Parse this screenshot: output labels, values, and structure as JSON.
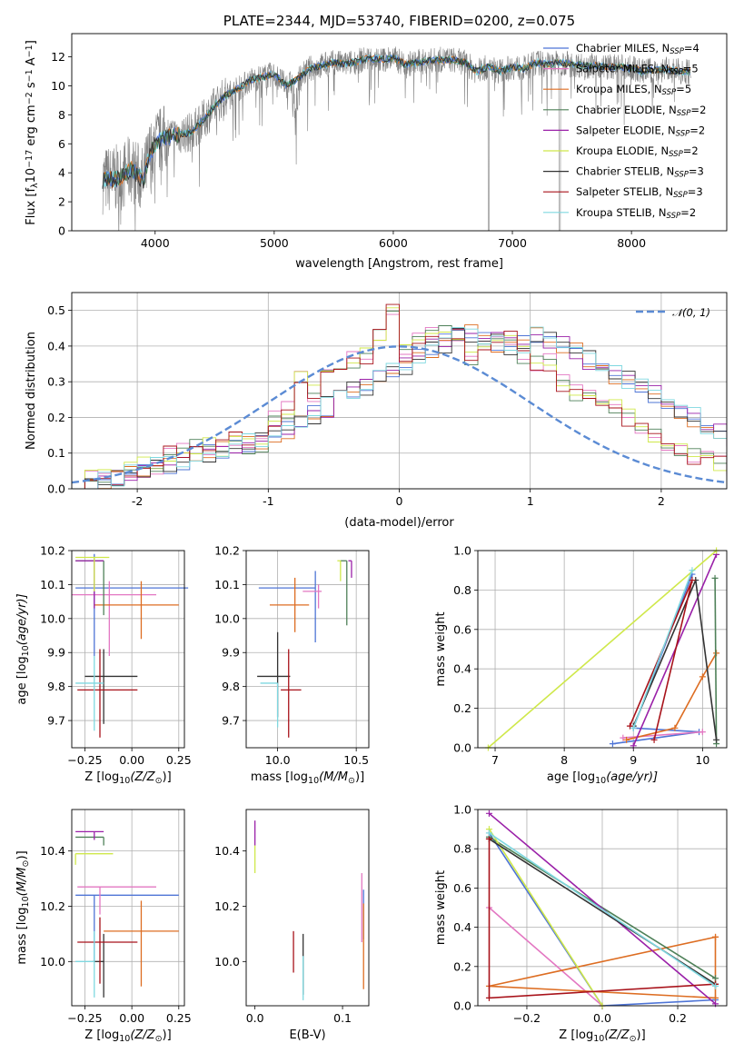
{
  "chart_data": [
    {
      "type": "line",
      "title": "PLATE=2344, MJD=53740, FIBERID=0200, z=0.075",
      "xlabel": "wavelength [Angstrom, rest frame]",
      "ylabel": "Flux [f",
      "ylabel_parts": [
        "Flux [f",
        "λ",
        "10",
        "−17",
        " erg cm",
        "−2",
        " s",
        "−1",
        " A",
        "−1",
        "]"
      ],
      "xlim": [
        3300,
        8800
      ],
      "ylim": [
        0,
        13.6
      ],
      "xticks": [
        4000,
        5000,
        6000,
        7000,
        8000
      ],
      "yticks": [
        0,
        2,
        4,
        6,
        8,
        10,
        12
      ],
      "grid": false,
      "legend_position": "upper right",
      "continuum_x": [
        3560,
        3700,
        3800,
        3900,
        3950,
        4000,
        4100,
        4200,
        4300,
        4400,
        4500,
        4600,
        4700,
        4800,
        4900,
        5000,
        5100,
        5200,
        5300,
        5400,
        5500,
        5600,
        5700,
        5800,
        5900,
        6000,
        6100,
        6200,
        6300,
        6400,
        6500,
        6600,
        6700,
        6800,
        6900,
        7000,
        7100,
        7200,
        7300,
        7400,
        7500,
        7600,
        7700,
        7800,
        7900,
        8000,
        8100,
        8200,
        8300,
        8400,
        8500
      ],
      "continuum_y": [
        3.5,
        3.6,
        4.3,
        3.4,
        5.2,
        6.0,
        6.5,
        6.6,
        6.8,
        7.6,
        8.6,
        9.4,
        9.8,
        10.4,
        10.6,
        10.8,
        10.0,
        10.5,
        11.2,
        11.4,
        11.6,
        11.5,
        11.7,
        11.9,
        11.8,
        11.9,
        11.5,
        11.6,
        11.7,
        11.8,
        11.8,
        11.6,
        11.0,
        11.3,
        11.0,
        11.3,
        11.2,
        11.6,
        11.5,
        11.6,
        11.5,
        11.4,
        11.4,
        11.3,
        11.3,
        11.2,
        11.0,
        11.1,
        11.1,
        11.0,
        11.0
      ],
      "series": [
        {
          "name": "Chabrier MILES, N",
          "nssp": "4",
          "color": "#4e74d6"
        },
        {
          "name": "Salpeter MILES, N",
          "nssp": "5",
          "color": "#e377c2"
        },
        {
          "name": "Kroupa MILES, N",
          "nssp": "5",
          "color": "#dd6d22"
        },
        {
          "name": "Chabrier ELODIE, N",
          "nssp": "2",
          "color": "#4e8058"
        },
        {
          "name": "Salpeter ELODIE, N",
          "nssp": "2",
          "color": "#9a20a8"
        },
        {
          "name": "Kroupa ELODIE, N",
          "nssp": "2",
          "color": "#cfe84a"
        },
        {
          "name": "Chabrier STELIB, N",
          "nssp": "3",
          "color": "#333333"
        },
        {
          "name": "Salpeter STELIB, N",
          "nssp": "3",
          "color": "#a8121a"
        },
        {
          "name": "Kroupa STELIB, N",
          "nssp": "2",
          "color": "#7fd8e0"
        }
      ],
      "legend_sub": "SSP",
      "legend_eq": "="
    },
    {
      "type": "histogram",
      "xlabel": "(data-model)/error",
      "ylabel": "Normed distribution",
      "xlim": [
        -2.5,
        2.5
      ],
      "ylim": [
        0,
        0.55
      ],
      "xticks": [
        -2,
        -1,
        0,
        1,
        2
      ],
      "yticks": [
        0.0,
        0.1,
        0.2,
        0.3,
        0.4,
        0.5
      ],
      "grid": true,
      "legend_position": "upper right",
      "legend_label": "𝒩(0, 1)",
      "gaussian_color": "#5b8bd4",
      "bin_width": 0.1,
      "bin_start": -2.5,
      "base": [
        0.02,
        0.02,
        0.03,
        0.03,
        0.04,
        0.05,
        0.06,
        0.07,
        0.08,
        0.09,
        0.1,
        0.11,
        0.12,
        0.13,
        0.14,
        0.15,
        0.17,
        0.19,
        0.21,
        0.23,
        0.25,
        0.27,
        0.29,
        0.31,
        0.33,
        0.35,
        0.37,
        0.39,
        0.41,
        0.43,
        0.44,
        0.43,
        0.41,
        0.4,
        0.41,
        0.43,
        0.42,
        0.4,
        0.38,
        0.36,
        0.34,
        0.32,
        0.3,
        0.28,
        0.26,
        0.24,
        0.22,
        0.2,
        0.18,
        0.16,
        0.14,
        0.12,
        0.1,
        0.09,
        0.08,
        0.07,
        0.06,
        0.05,
        0.04,
        0.03
      ],
      "base2": [
        0.02,
        0.03,
        0.03,
        0.04,
        0.05,
        0.06,
        0.07,
        0.09,
        0.1,
        0.11,
        0.12,
        0.12,
        0.13,
        0.12,
        0.12,
        0.2,
        0.22,
        0.3,
        0.27,
        0.33,
        0.34,
        0.36,
        0.37,
        0.44,
        0.5,
        0.38,
        0.42,
        0.44,
        0.43,
        0.4,
        0.37,
        0.41,
        0.42,
        0.43,
        0.38,
        0.36,
        0.35,
        0.3,
        0.27,
        0.26,
        0.24,
        0.22,
        0.2,
        0.16,
        0.15,
        0.12,
        0.1,
        0.09,
        0.08,
        0.07,
        0.06,
        0.05,
        0.04,
        0.03,
        0.03,
        0.02,
        0.02,
        0.02,
        0.02,
        0.02
      ]
    },
    {
      "type": "errorbar",
      "xlabel": "Z [log",
      "xlabel_parts": [
        "Z [log",
        "10",
        "(Z/Z",
        "⊙",
        ")]"
      ],
      "ylabel": "age  [log",
      "ylabel_parts": [
        "age  [log",
        "10",
        "(age/yr)]"
      ],
      "xlim": [
        -0.32,
        0.28
      ],
      "ylim": [
        9.62,
        10.2
      ],
      "xticks": [
        -0.25,
        0.0,
        0.25
      ],
      "xticklabels": [
        "−0.25",
        "0.00",
        "0.25"
      ],
      "yticks": [
        9.7,
        9.8,
        9.9,
        10.0,
        10.1,
        10.2
      ],
      "grid": true,
      "points": [
        {
          "x": -0.2,
          "xerr": [
            0.1,
            0.5
          ],
          "y": 10.09,
          "yerr": [
            0.2,
            0.1
          ],
          "c": 0
        },
        {
          "x": -0.12,
          "xerr": [
            0.2,
            0.25
          ],
          "y": 10.07,
          "yerr": [
            0.18,
            0.04
          ],
          "c": 1
        },
        {
          "x": 0.05,
          "xerr": [
            0.25,
            0.2
          ],
          "y": 10.04,
          "yerr": [
            0.1,
            0.07
          ],
          "c": 2
        },
        {
          "x": -0.15,
          "xerr": [
            0.15,
            0.0
          ],
          "y": 10.17,
          "yerr": [
            0.16,
            0.0
          ],
          "c": 3
        },
        {
          "x": -0.2,
          "xerr": [
            0.1,
            0.05
          ],
          "y": 10.17,
          "yerr": [
            0.14,
            0.0
          ],
          "c": 4
        },
        {
          "x": -0.2,
          "xerr": [
            0.1,
            0.08
          ],
          "y": 10.18,
          "yerr": [
            0.1,
            0.0
          ],
          "c": 5
        },
        {
          "x": -0.15,
          "xerr": [
            0.1,
            0.18
          ],
          "y": 9.83,
          "yerr": [
            0.14,
            0.08
          ],
          "c": 6
        },
        {
          "x": -0.17,
          "xerr": [
            0.12,
            0.2
          ],
          "y": 9.79,
          "yerr": [
            0.14,
            0.12
          ],
          "c": 7
        },
        {
          "x": -0.2,
          "xerr": [
            0.1,
            0.05
          ],
          "y": 9.81,
          "yerr": [
            0.14,
            0.08
          ],
          "c": 8
        }
      ]
    },
    {
      "type": "errorbar",
      "xlabel": "mass [log",
      "xlabel_parts": [
        "mass [log",
        "10",
        "(M/M",
        "⊙",
        ")]"
      ],
      "xlim": [
        9.8,
        10.58
      ],
      "ylim": [
        9.62,
        10.2
      ],
      "xticks": [
        10.0,
        10.5
      ],
      "xticklabels": [
        "10.0",
        "10.5"
      ],
      "yticks": [
        9.7,
        9.8,
        9.9,
        10.0,
        10.1,
        10.2
      ],
      "grid": true,
      "points": [
        {
          "x": 10.24,
          "xerr": [
            0.36,
            0.0
          ],
          "y": 10.09,
          "yerr": [
            0.16,
            0.05
          ],
          "c": 0
        },
        {
          "x": 10.26,
          "xerr": [
            0.1,
            0.02
          ],
          "y": 10.08,
          "yerr": [
            0.05,
            0.02
          ],
          "c": 1
        },
        {
          "x": 10.11,
          "xerr": [
            0.16,
            0.09
          ],
          "y": 10.04,
          "yerr": [
            0.08,
            0.08
          ],
          "c": 2
        },
        {
          "x": 10.44,
          "xerr": [
            0.04,
            0.0
          ],
          "y": 10.17,
          "yerr": [
            0.19,
            0.0
          ],
          "c": 3
        },
        {
          "x": 10.47,
          "xerr": [
            0.02,
            0.0
          ],
          "y": 10.17,
          "yerr": [
            0.05,
            0.0
          ],
          "c": 4
        },
        {
          "x": 10.4,
          "xerr": [
            0.02,
            0.0
          ],
          "y": 10.17,
          "yerr": [
            0.06,
            0.0
          ],
          "c": 5
        },
        {
          "x": 10.0,
          "xerr": [
            0.13,
            0.08
          ],
          "y": 9.83,
          "yerr": [
            0.12,
            0.13
          ],
          "c": 6
        },
        {
          "x": 10.07,
          "xerr": [
            0.05,
            0.08
          ],
          "y": 9.79,
          "yerr": [
            0.14,
            0.12
          ],
          "c": 7
        },
        {
          "x": 10.0,
          "xerr": [
            0.11,
            0.0
          ],
          "y": 9.81,
          "yerr": [
            0.13,
            0.0
          ],
          "c": 8
        }
      ]
    },
    {
      "type": "line",
      "xlabel": "age  [log",
      "xlabel_parts": [
        "age  [log",
        "10",
        "(age/yr)]"
      ],
      "ylabel": "mass weight",
      "xlim": [
        6.75,
        10.35
      ],
      "ylim": [
        0,
        1
      ],
      "xticks": [
        7,
        8,
        9,
        10
      ],
      "yticks": [
        0.0,
        0.2,
        0.4,
        0.6,
        0.8,
        1.0
      ],
      "grid": true,
      "series": [
        {
          "c": 0,
          "x": [
            8.7,
            9.95,
            9.0,
            9.85
          ],
          "y": [
            0.02,
            0.08,
            0.1,
            0.88
          ]
        },
        {
          "c": 1,
          "x": [
            8.85,
            10.0
          ],
          "y": [
            0.05,
            0.08
          ]
        },
        {
          "c": 2,
          "x": [
            8.9,
            9.6,
            10.0,
            10.2
          ],
          "y": [
            0.04,
            0.1,
            0.36,
            0.48
          ]
        },
        {
          "c": 3,
          "x": [
            10.2,
            10.18
          ],
          "y": [
            0.02,
            0.86
          ]
        },
        {
          "c": 4,
          "x": [
            9.0,
            10.2
          ],
          "y": [
            0.01,
            0.98
          ]
        },
        {
          "c": 5,
          "x": [
            6.9,
            10.2
          ],
          "y": [
            0.0,
            1.0
          ]
        },
        {
          "c": 6,
          "x": [
            9.0,
            9.9,
            10.2
          ],
          "y": [
            0.11,
            0.85,
            0.04
          ]
        },
        {
          "c": 7,
          "x": [
            9.3,
            9.85,
            8.95
          ],
          "y": [
            0.04,
            0.85,
            0.11
          ]
        },
        {
          "c": 8,
          "x": [
            9.0,
            9.85
          ],
          "y": [
            0.1,
            0.9
          ]
        }
      ]
    },
    {
      "type": "errorbar",
      "xlabel": "Z [log",
      "xlabel_parts": [
        "Z [log",
        "10",
        "(Z/Z",
        "⊙",
        ")]"
      ],
      "ylabel": "mass [log",
      "ylabel_parts": [
        "mass [log",
        "10",
        "(M/M",
        "⊙",
        ")]"
      ],
      "xlim": [
        -0.32,
        0.28
      ],
      "ylim": [
        9.84,
        10.55
      ],
      "xticks": [
        -0.25,
        0.0,
        0.25
      ],
      "xticklabels": [
        "−0.25",
        "0.00",
        "0.25"
      ],
      "yticks": [
        10.0,
        10.2,
        10.4
      ],
      "grid": true,
      "points": [
        {
          "x": -0.2,
          "xerr": [
            0.1,
            0.45
          ],
          "y": 10.24,
          "yerr": [
            0.24,
            0.0
          ],
          "c": 0
        },
        {
          "x": -0.17,
          "xerr": [
            0.12,
            0.3
          ],
          "y": 10.27,
          "yerr": [
            0.1,
            0.0
          ],
          "c": 1
        },
        {
          "x": 0.05,
          "xerr": [
            0.2,
            0.2
          ],
          "y": 10.11,
          "yerr": [
            0.2,
            0.11
          ],
          "c": 2
        },
        {
          "x": -0.15,
          "xerr": [
            0.15,
            0.0
          ],
          "y": 10.45,
          "yerr": [
            0.03,
            0.0
          ],
          "c": 3
        },
        {
          "x": -0.2,
          "xerr": [
            0.1,
            0.05
          ],
          "y": 10.47,
          "yerr": [
            0.03,
            0.0
          ],
          "c": 4
        },
        {
          "x": -0.3,
          "xerr": [
            0.0,
            0.2
          ],
          "y": 10.39,
          "yerr": [
            0.04,
            0.0
          ],
          "c": 5
        },
        {
          "x": -0.15,
          "xerr": [
            0.06,
            0.0
          ],
          "y": 10.0,
          "yerr": [
            0.13,
            0.1
          ],
          "c": 6
        },
        {
          "x": -0.17,
          "xerr": [
            0.12,
            0.2
          ],
          "y": 10.07,
          "yerr": [
            0.15,
            0.09
          ],
          "c": 7
        },
        {
          "x": -0.2,
          "xerr": [
            0.1,
            0.0
          ],
          "y": 10.0,
          "yerr": [
            0.13,
            0.11
          ],
          "c": 8
        }
      ]
    },
    {
      "type": "errorbar",
      "xlabel": "E(B-V)",
      "xlim": [
        -0.01,
        0.13
      ],
      "ylim": [
        9.84,
        10.55
      ],
      "xticks": [
        0.0,
        0.1
      ],
      "xticklabels": [
        "0.0",
        "0.1"
      ],
      "yticks": [
        10.0,
        10.2,
        10.4
      ],
      "grid": false,
      "points": [
        {
          "x": 0.0,
          "y": 10.46,
          "yerr": [
            0.04,
            0.05
          ],
          "c": 4
        },
        {
          "x": 0.0,
          "y": 10.38,
          "yerr": [
            0.06,
            0.04
          ],
          "c": 5
        },
        {
          "x": 0.055,
          "y": 10.0,
          "yerr": [
            0.12,
            0.1
          ],
          "c": 6
        },
        {
          "x": 0.044,
          "y": 10.03,
          "yerr": [
            0.07,
            0.08
          ],
          "c": 7
        },
        {
          "x": 0.055,
          "y": 9.98,
          "yerr": [
            0.12,
            0.04
          ],
          "c": 8
        },
        {
          "x": 0.122,
          "y": 10.2,
          "yerr": [
            0.13,
            0.12
          ],
          "c": 1
        },
        {
          "x": 0.124,
          "y": 10.18,
          "yerr": [
            0.1,
            0.08
          ],
          "c": 0
        },
        {
          "x": 0.124,
          "y": 10.06,
          "yerr": [
            0.16,
            0.15
          ],
          "c": 2
        }
      ]
    },
    {
      "type": "line",
      "xlabel": "Z [log",
      "xlabel_parts": [
        "Z [log",
        "10",
        "(Z/Z",
        "⊙",
        ")]"
      ],
      "ylabel": "mass weight",
      "xlim": [
        -0.33,
        0.33
      ],
      "ylim": [
        0,
        1
      ],
      "xticks": [
        -0.2,
        0.0,
        0.2
      ],
      "xticklabels": [
        "−0.2",
        "0.0",
        "0.2"
      ],
      "yticks": [
        0.0,
        0.2,
        0.4,
        0.6,
        0.8,
        1.0
      ],
      "grid": true,
      "series": [
        {
          "c": 0,
          "x": [
            -0.3,
            0.0,
            0.3
          ],
          "y": [
            0.88,
            0.0,
            0.03
          ]
        },
        {
          "c": 1,
          "x": [
            -0.3,
            0.0
          ],
          "y": [
            0.5,
            0.0
          ]
        },
        {
          "c": 2,
          "x": [
            0.3,
            -0.3,
            0.3,
            0.3
          ],
          "y": [
            0.35,
            0.1,
            0.04,
            0.35
          ]
        },
        {
          "c": 3,
          "x": [
            -0.3,
            0.3
          ],
          "y": [
            0.86,
            0.14
          ]
        },
        {
          "c": 4,
          "x": [
            -0.3,
            0.3
          ],
          "y": [
            0.98,
            0.01
          ]
        },
        {
          "c": 5,
          "x": [
            -0.3,
            0.0
          ],
          "y": [
            0.9,
            0.0
          ]
        },
        {
          "c": 6,
          "x": [
            -0.3,
            0.3
          ],
          "y": [
            0.85,
            0.11
          ]
        },
        {
          "c": 7,
          "x": [
            -0.3,
            -0.3,
            0.3
          ],
          "y": [
            0.85,
            0.04,
            0.11
          ]
        },
        {
          "c": 8,
          "x": [
            -0.3,
            0.3
          ],
          "y": [
            0.88,
            0.1
          ]
        }
      ]
    }
  ]
}
